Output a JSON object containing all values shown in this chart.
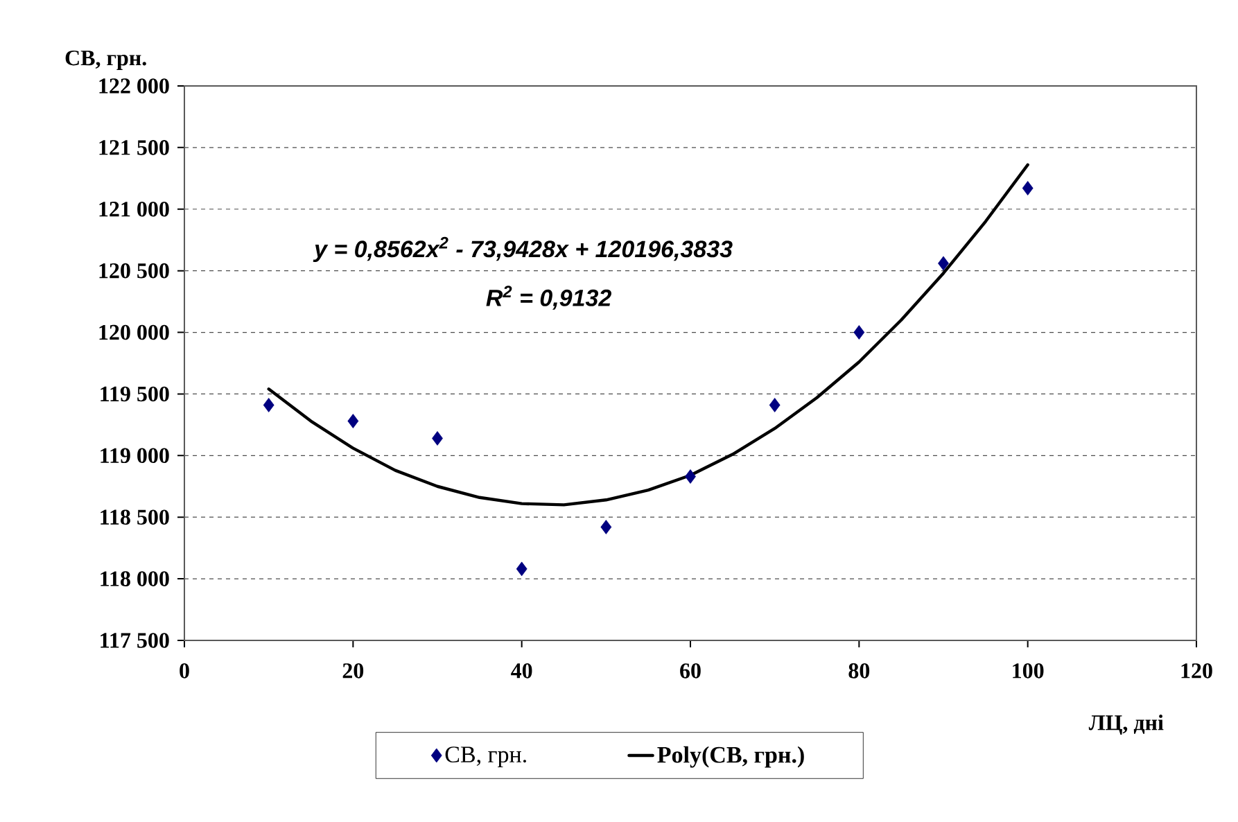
{
  "chart_data": {
    "type": "scatter",
    "xlabel": "ЛЦ, дні",
    "ylabel": "СВ, грн.",
    "annotations": [
      "y = 0,8562x$^{2}$ - 73,9428x + 120196,3833",
      "R$^{2}$ = 0,9132"
    ],
    "xlim": [
      0,
      120
    ],
    "xticks": [
      0,
      20,
      40,
      60,
      80,
      100,
      120
    ],
    "ylim": [
      117500,
      122000
    ],
    "yticks": [
      {
        "value": 117500,
        "label": "117 500"
      },
      {
        "value": 118000,
        "label": "118 000"
      },
      {
        "value": 118500,
        "label": "118 500"
      },
      {
        "value": 119000,
        "label": "119 000"
      },
      {
        "value": 119500,
        "label": "119 500"
      },
      {
        "value": 120000,
        "label": "120 000"
      },
      {
        "value": 120500,
        "label": "120 500"
      },
      {
        "value": 121000,
        "label": "121 000"
      },
      {
        "value": 121500,
        "label": "121 500"
      },
      {
        "value": 122000,
        "label": "122 000"
      }
    ],
    "grid": "y",
    "legend": "bottom",
    "marker": "diamond",
    "series": [
      {
        "name": "СВ, грн.",
        "color": "#000080",
        "x": [
          10,
          20,
          30,
          40,
          50,
          60,
          70,
          80,
          90,
          100
        ],
        "values": [
          119410,
          119280,
          119140,
          118080,
          118420,
          118830,
          119410,
          120000,
          120560,
          121170
        ]
      },
      {
        "name": "Poly(СВ, грн.)",
        "type": "line",
        "marker": "none",
        "color": "#000000",
        "x": [
          10,
          15,
          20,
          25,
          30,
          35,
          40,
          45,
          50,
          55,
          60,
          65,
          70,
          75,
          80,
          85,
          90,
          95,
          100
        ],
        "values": [
          119540,
          119280,
          119060,
          118880,
          118750,
          118660,
          118610,
          118600,
          118640,
          118720,
          118840,
          119010,
          119220,
          119470,
          119760,
          120100,
          120480,
          120900,
          121360
        ]
      }
    ]
  }
}
